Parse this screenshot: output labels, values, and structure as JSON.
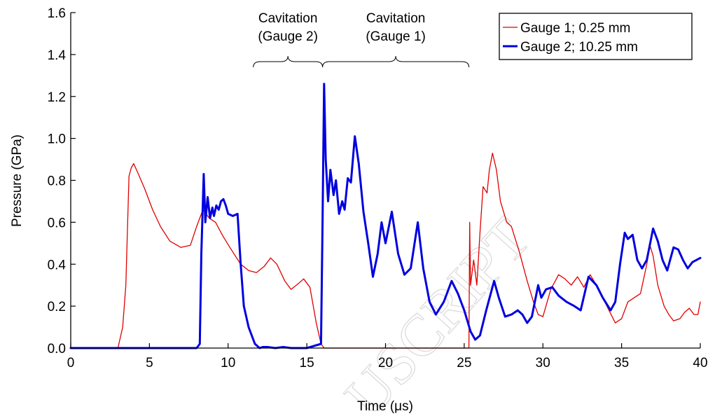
{
  "chart_data": {
    "type": "line",
    "xlabel": "Time (μs)",
    "ylabel": "Pressure (GPa)",
    "xlim": [
      0,
      40
    ],
    "ylim": [
      0,
      1.6
    ],
    "xticks": [
      0,
      5,
      10,
      15,
      20,
      25,
      30,
      35,
      40
    ],
    "xtick_labels": [
      "0",
      "5",
      "10",
      "15",
      "20",
      "25",
      "30",
      "35",
      "40"
    ],
    "yticks": [
      0,
      0.2,
      0.4,
      0.6,
      0.8,
      1.0,
      1.2,
      1.4,
      1.6
    ],
    "ytick_labels": [
      "0.0",
      "0.2",
      "0.4",
      "0.6",
      "0.8",
      "1.0",
      "1.2",
      "1.4",
      "1.6"
    ],
    "grid": false,
    "legend_position": "top-right",
    "series": [
      {
        "name": "Gauge 1; 0.25 mm",
        "color": "#e00000",
        "x": [
          0,
          3.0,
          3.3,
          3.5,
          3.7,
          3.85,
          4.0,
          4.3,
          4.7,
          5.2,
          5.7,
          6.3,
          7.0,
          7.6,
          8.0,
          8.4,
          8.8,
          9.2,
          9.7,
          10.2,
          10.8,
          11.3,
          11.8,
          12.3,
          12.7,
          13.1,
          13.6,
          14.0,
          14.5,
          14.8,
          15.2,
          15.6,
          15.9,
          16.1,
          17.0,
          20.0,
          23.0,
          25.3,
          25.35,
          25.4,
          25.6,
          25.8,
          26.0,
          26.2,
          26.45,
          26.6,
          26.8,
          27.05,
          27.3,
          27.7,
          28.0,
          28.5,
          29.0,
          29.4,
          29.7,
          30.0,
          30.5,
          31.0,
          31.4,
          31.8,
          32.2,
          32.6,
          33.0,
          33.4,
          33.8,
          34.2,
          34.6,
          35.0,
          35.4,
          35.8,
          36.2,
          36.6,
          36.8,
          37.0,
          37.3,
          37.7,
          38.0,
          38.3,
          38.7,
          39.0,
          39.3,
          39.6,
          39.85,
          40.0
        ],
        "y": [
          0,
          0,
          0.1,
          0.3,
          0.82,
          0.86,
          0.88,
          0.83,
          0.76,
          0.66,
          0.58,
          0.51,
          0.48,
          0.49,
          0.58,
          0.66,
          0.62,
          0.6,
          0.53,
          0.47,
          0.4,
          0.37,
          0.36,
          0.39,
          0.43,
          0.4,
          0.32,
          0.28,
          0.31,
          0.33,
          0.29,
          0.12,
          0.02,
          0,
          0,
          0,
          0,
          0,
          0.6,
          0.3,
          0.42,
          0.3,
          0.55,
          0.77,
          0.74,
          0.85,
          0.93,
          0.85,
          0.7,
          0.6,
          0.58,
          0.46,
          0.32,
          0.22,
          0.16,
          0.15,
          0.28,
          0.35,
          0.33,
          0.3,
          0.34,
          0.29,
          0.35,
          0.3,
          0.24,
          0.18,
          0.12,
          0.14,
          0.22,
          0.24,
          0.26,
          0.4,
          0.49,
          0.44,
          0.3,
          0.2,
          0.16,
          0.13,
          0.14,
          0.17,
          0.19,
          0.16,
          0.16,
          0.22
        ]
      },
      {
        "name": "Gauge 2; 10.25 mm",
        "color": "#0000e0",
        "x": [
          0,
          8.0,
          8.2,
          8.3,
          8.45,
          8.55,
          8.7,
          8.85,
          9.0,
          9.1,
          9.25,
          9.4,
          9.55,
          9.7,
          9.85,
          10.0,
          10.3,
          10.6,
          10.8,
          11.0,
          11.3,
          11.7,
          12.0,
          12.2,
          12.5,
          13.0,
          13.5,
          14.0,
          15.0,
          15.9,
          16.0,
          16.1,
          16.2,
          16.35,
          16.5,
          16.7,
          16.85,
          17.05,
          17.25,
          17.4,
          17.6,
          17.8,
          18.05,
          18.3,
          18.6,
          18.9,
          19.2,
          19.5,
          19.75,
          20.0,
          20.4,
          20.8,
          21.2,
          21.6,
          22.05,
          22.4,
          22.8,
          23.2,
          23.7,
          24.2,
          24.6,
          25.0,
          25.4,
          25.7,
          26.0,
          26.4,
          26.9,
          27.2,
          27.6,
          28.0,
          28.4,
          28.7,
          29.0,
          29.3,
          29.7,
          29.9,
          30.2,
          30.6,
          31.0,
          31.5,
          32.0,
          32.4,
          32.9,
          33.4,
          33.8,
          34.3,
          34.6,
          34.9,
          35.2,
          35.4,
          35.7,
          36.0,
          36.3,
          36.6,
          37.0,
          37.3,
          37.6,
          37.9,
          38.3,
          38.6,
          38.9,
          39.2,
          39.5,
          40.0
        ],
        "y": [
          0,
          0,
          0.02,
          0.45,
          0.83,
          0.6,
          0.72,
          0.62,
          0.67,
          0.63,
          0.68,
          0.66,
          0.7,
          0.71,
          0.68,
          0.64,
          0.63,
          0.64,
          0.4,
          0.2,
          0.1,
          0.02,
          0,
          0.005,
          0.005,
          0,
          0.005,
          0,
          0,
          0.02,
          0.6,
          1.26,
          0.9,
          0.7,
          0.85,
          0.73,
          0.8,
          0.64,
          0.7,
          0.66,
          0.81,
          0.79,
          1.01,
          0.88,
          0.65,
          0.5,
          0.34,
          0.45,
          0.6,
          0.5,
          0.65,
          0.45,
          0.35,
          0.38,
          0.6,
          0.38,
          0.22,
          0.16,
          0.22,
          0.32,
          0.26,
          0.18,
          0.08,
          0.04,
          0.06,
          0.18,
          0.32,
          0.24,
          0.15,
          0.16,
          0.18,
          0.16,
          0.12,
          0.15,
          0.3,
          0.24,
          0.28,
          0.29,
          0.25,
          0.22,
          0.2,
          0.18,
          0.34,
          0.3,
          0.24,
          0.18,
          0.22,
          0.4,
          0.55,
          0.52,
          0.54,
          0.42,
          0.38,
          0.42,
          0.57,
          0.51,
          0.42,
          0.37,
          0.48,
          0.47,
          0.42,
          0.38,
          0.41,
          0.43
        ]
      }
    ],
    "annotations": [
      {
        "lines": [
          "Cavitation",
          "(Gauge 2)"
        ],
        "x_start": 11.6,
        "x_end": 16.0
      },
      {
        "lines": [
          "Cavitation",
          "(Gauge 1)"
        ],
        "x_start": 16.0,
        "x_end": 25.3
      }
    ]
  },
  "watermark": "USCRIPT"
}
